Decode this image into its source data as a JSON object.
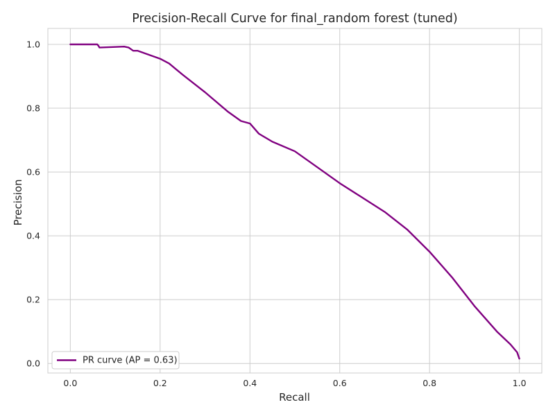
{
  "chart_data": {
    "type": "line",
    "title": "Precision-Recall Curve for final_random forest (tuned)",
    "xlabel": "Recall",
    "ylabel": "Precision",
    "xlim": [
      -0.05,
      1.05
    ],
    "ylim": [
      -0.03,
      1.05
    ],
    "xticks": [
      0.0,
      0.2,
      0.4,
      0.6,
      0.8,
      1.0
    ],
    "xtick_labels": [
      "0.0",
      "0.2",
      "0.4",
      "0.6",
      "0.8",
      "1.0"
    ],
    "yticks": [
      0.0,
      0.2,
      0.4,
      0.6,
      0.8,
      1.0
    ],
    "ytick_labels": [
      "0.0",
      "0.2",
      "0.4",
      "0.6",
      "0.8",
      "1.0"
    ],
    "grid": true,
    "legend_position": "lower-left",
    "series": [
      {
        "name": "PR curve (AP = 0.63)",
        "color": "#800080",
        "x": [
          0.0,
          0.06,
          0.063,
          0.065,
          0.1,
          0.12,
          0.13,
          0.14,
          0.15,
          0.2,
          0.22,
          0.25,
          0.3,
          0.35,
          0.38,
          0.4,
          0.42,
          0.45,
          0.5,
          0.55,
          0.6,
          0.65,
          0.7,
          0.75,
          0.8,
          0.85,
          0.9,
          0.95,
          0.98,
          0.995,
          1.0
        ],
        "y": [
          1.0,
          1.0,
          0.995,
          0.99,
          0.992,
          0.993,
          0.99,
          0.98,
          0.98,
          0.955,
          0.94,
          0.905,
          0.85,
          0.79,
          0.76,
          0.752,
          0.72,
          0.695,
          0.665,
          0.615,
          0.565,
          0.52,
          0.475,
          0.42,
          0.35,
          0.27,
          0.18,
          0.1,
          0.06,
          0.035,
          0.015
        ]
      }
    ]
  }
}
